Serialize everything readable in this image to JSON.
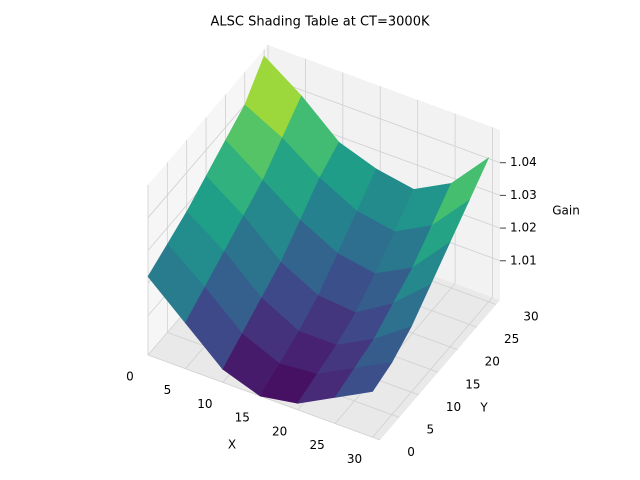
{
  "chart_data": {
    "type": "surface",
    "title": "ALSC Shading Table at CT=3000K",
    "xlabel": "X",
    "ylabel": "Y",
    "zlabel": "Gain",
    "x": [
      0,
      5,
      10,
      15,
      20,
      25,
      30
    ],
    "y": [
      0,
      5,
      10,
      15,
      20,
      25,
      30
    ],
    "z": [
      [
        1.022,
        1.012,
        1.002,
        0.998,
        1.0,
        1.006,
        1.012
      ],
      [
        1.025,
        1.016,
        1.006,
        1.001,
        1.002,
        1.008,
        1.014
      ],
      [
        1.028,
        1.02,
        1.01,
        1.004,
        1.004,
        1.01,
        1.018
      ],
      [
        1.032,
        1.024,
        1.014,
        1.008,
        1.007,
        1.014,
        1.024
      ],
      [
        1.036,
        1.028,
        1.02,
        1.014,
        1.012,
        1.018,
        1.03
      ],
      [
        1.04,
        1.034,
        1.026,
        1.02,
        1.018,
        1.024,
        1.036
      ],
      [
        1.048,
        1.04,
        1.03,
        1.026,
        1.024,
        1.03,
        1.042
      ]
    ],
    "colormap": "viridis",
    "xlim": [
      0,
      31
    ],
    "xticks": [
      0,
      5,
      10,
      15,
      20,
      25,
      30
    ],
    "ylim": [
      0,
      31
    ],
    "yticks": [
      0,
      5,
      10,
      15,
      20,
      25,
      30
    ],
    "zlim": [
      0.998,
      1.05
    ],
    "zticks": [
      1.01,
      1.02,
      1.03,
      1.04
    ],
    "grid": true
  }
}
